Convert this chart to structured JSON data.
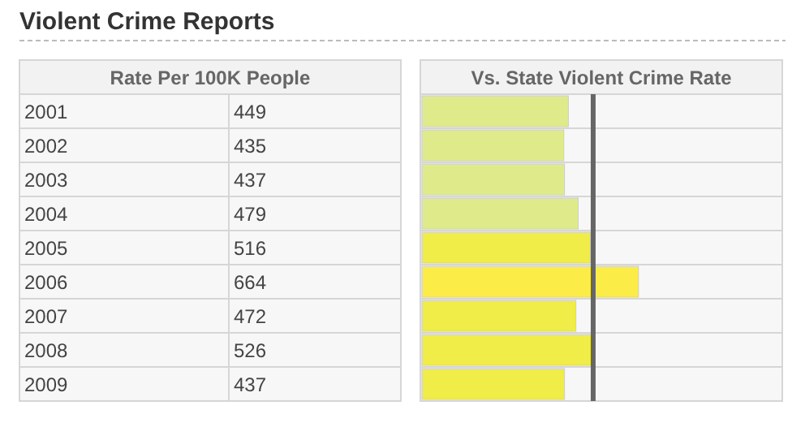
{
  "chart_data": {
    "type": "bar",
    "orientation": "horizontal",
    "title": "Violent Crime Reports",
    "ylabel": "Rate Per 100K People",
    "xlabel": "Vs. State Violent Crime Rate",
    "categories": [
      "2001",
      "2002",
      "2003",
      "2004",
      "2005",
      "2006",
      "2007",
      "2008",
      "2009"
    ],
    "values": [
      449,
      435,
      437,
      479,
      516,
      664,
      472,
      526,
      437
    ],
    "colors": [
      "#dfeb8a",
      "#dfeb8a",
      "#dfeb8a",
      "#dfeb8a",
      "#f0ec48",
      "#fcec48",
      "#f0ec48",
      "#f0ec48",
      "#f0ec48"
    ],
    "xlim": [
      0,
      1100
    ],
    "data_labels": true,
    "ref_lines": [
      {
        "axis": "x",
        "value": 525,
        "color": "#666666"
      }
    ]
  }
}
